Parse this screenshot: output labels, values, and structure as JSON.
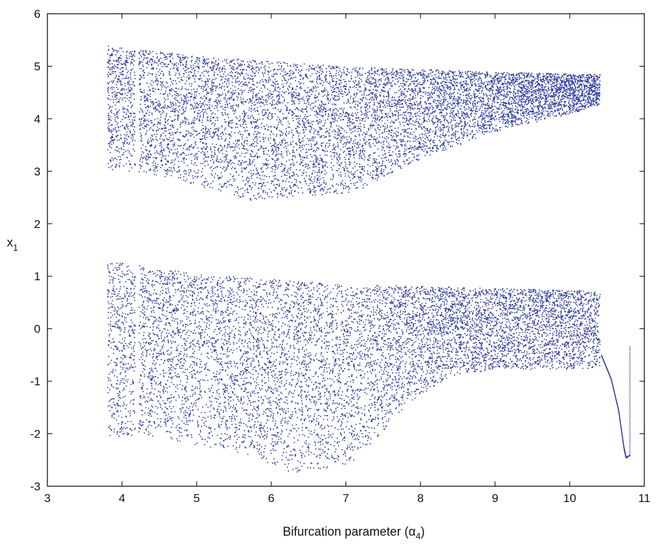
{
  "chart_data": {
    "type": "scatter",
    "title": "",
    "xlabel": {
      "main": "Bifurcation parameter (",
      "greek": "α",
      "sub": "4",
      "close": ")"
    },
    "ylabel": {
      "main": "x",
      "sub": "1"
    },
    "xlim": [
      3,
      11
    ],
    "ylim": [
      -3,
      6
    ],
    "xticks": [
      "3",
      "4",
      "5",
      "6",
      "7",
      "8",
      "9",
      "10",
      "11"
    ],
    "yticks": [
      "-3",
      "-2",
      "-1",
      "0",
      "1",
      "2",
      "3",
      "4",
      "5",
      "6"
    ],
    "grid": false,
    "legend": "none",
    "point_color": "#2b3a9c",
    "series": [
      {
        "region": "upper-chaotic-band",
        "x_range": [
          3.8,
          10.4
        ],
        "top_boundary": [
          [
            3.8,
            5.4
          ],
          [
            5.0,
            5.2
          ],
          [
            7.0,
            5.0
          ],
          [
            9.0,
            4.9
          ],
          [
            10.4,
            4.85
          ]
        ],
        "bottom_boundary": [
          [
            3.8,
            3.05
          ],
          [
            4.6,
            2.9
          ],
          [
            5.7,
            2.45
          ],
          [
            6.5,
            2.55
          ],
          [
            7.1,
            2.6
          ],
          [
            8.0,
            3.25
          ],
          [
            9.0,
            3.75
          ],
          [
            10.4,
            4.25
          ]
        ]
      },
      {
        "region": "lower-chaotic-band",
        "x_range": [
          3.8,
          10.4
        ],
        "top_boundary": [
          [
            3.8,
            1.3
          ],
          [
            5.0,
            1.05
          ],
          [
            7.0,
            0.85
          ],
          [
            9.0,
            0.78
          ],
          [
            10.4,
            0.72
          ]
        ],
        "bottom_boundary": [
          [
            3.8,
            -2.05
          ],
          [
            4.6,
            -2.1
          ],
          [
            5.7,
            -2.4
          ],
          [
            6.3,
            -2.75
          ],
          [
            7.1,
            -2.55
          ],
          [
            7.8,
            -1.45
          ],
          [
            8.4,
            -0.9
          ],
          [
            9.0,
            -0.78
          ],
          [
            10.4,
            -0.75
          ]
        ]
      },
      {
        "region": "periodic-branch",
        "points": [
          [
            10.42,
            -0.5
          ],
          [
            10.55,
            -0.95
          ],
          [
            10.65,
            -1.55
          ],
          [
            10.72,
            -2.25
          ],
          [
            10.75,
            -2.45
          ],
          [
            10.8,
            -2.4
          ],
          [
            10.8,
            -0.3
          ]
        ]
      }
    ]
  }
}
